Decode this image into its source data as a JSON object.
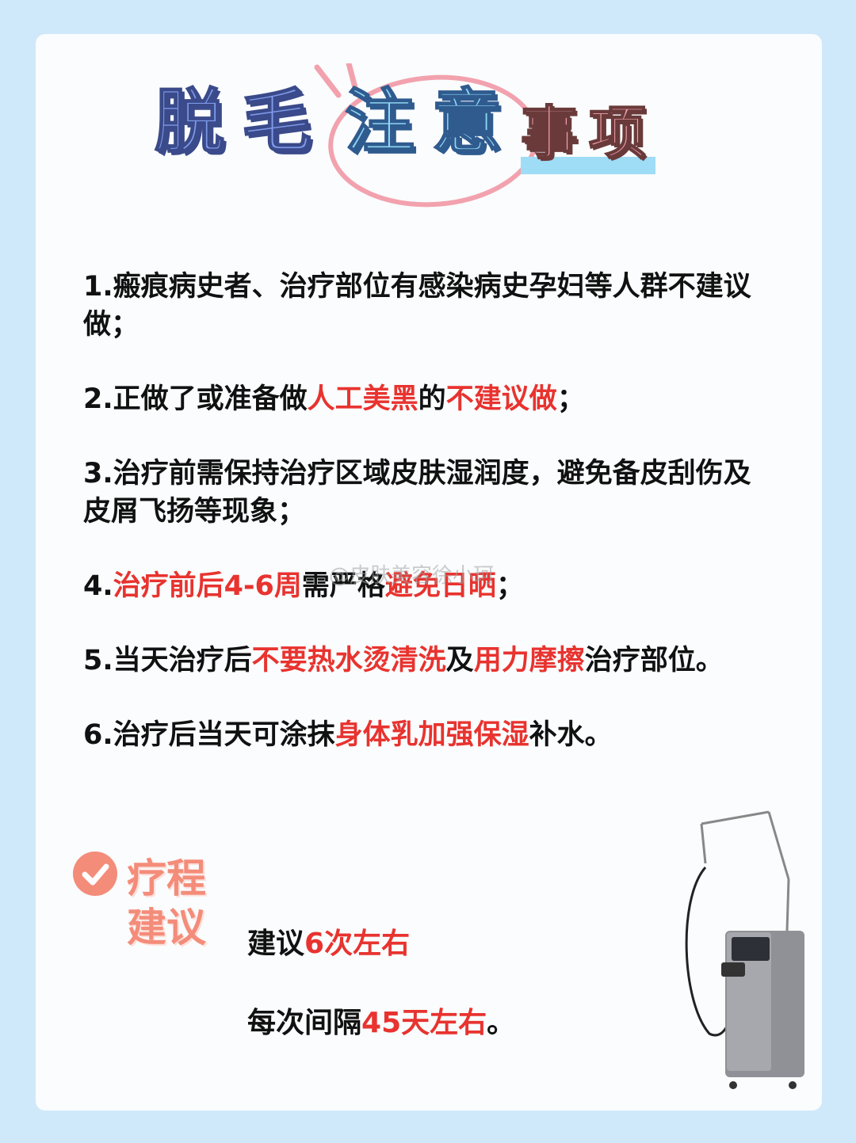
{
  "title": {
    "chars": [
      "脱",
      "毛",
      "注",
      "意",
      "事",
      "项"
    ]
  },
  "items": [
    {
      "parts": [
        {
          "text": "1.瘢痕病史者、治疗部位有感染病史孕妇等人群不建议做；",
          "red": false
        }
      ]
    },
    {
      "parts": [
        {
          "text": "2.正做了或准备做",
          "red": false
        },
        {
          "text": "人工美黑",
          "red": true
        },
        {
          "text": "的",
          "red": false
        },
        {
          "text": "不建议做",
          "red": true
        },
        {
          "text": "；",
          "red": false
        }
      ]
    },
    {
      "parts": [
        {
          "text": "3.治疗前需保持治疗区域皮肤湿润度，避免备皮刮伤及皮屑飞扬等现象；",
          "red": false
        }
      ]
    },
    {
      "parts": [
        {
          "text": "4.",
          "red": false
        },
        {
          "text": "治疗前后4-6周",
          "red": true
        },
        {
          "text": "需严格",
          "red": false
        },
        {
          "text": "避免日晒",
          "red": true
        },
        {
          "text": "；",
          "red": false
        }
      ]
    },
    {
      "parts": [
        {
          "text": "5.当天治疗后",
          "red": false
        },
        {
          "text": "不要热水烫清洗",
          "red": true
        },
        {
          "text": "及",
          "red": false
        },
        {
          "text": "用力摩擦",
          "red": true
        },
        {
          "text": "治疗部位。",
          "red": false
        }
      ]
    },
    {
      "parts": [
        {
          "text": "6.治疗后当天可涂抹",
          "red": false
        },
        {
          "text": "身体乳加强保湿",
          "red": true
        },
        {
          "text": "补水。",
          "red": false
        }
      ]
    }
  ],
  "watermark": "@皮肤美容徐小珂",
  "course": {
    "title_line1": "疗程",
    "title_line2": "建议",
    "line1": [
      {
        "text": "建议",
        "red": false
      },
      {
        "text": "6次左右",
        "red": true
      }
    ],
    "line2": [
      {
        "text": "每次间隔",
        "red": false
      },
      {
        "text": "45天左右",
        "red": true
      },
      {
        "text": "。",
        "red": false
      }
    ]
  }
}
